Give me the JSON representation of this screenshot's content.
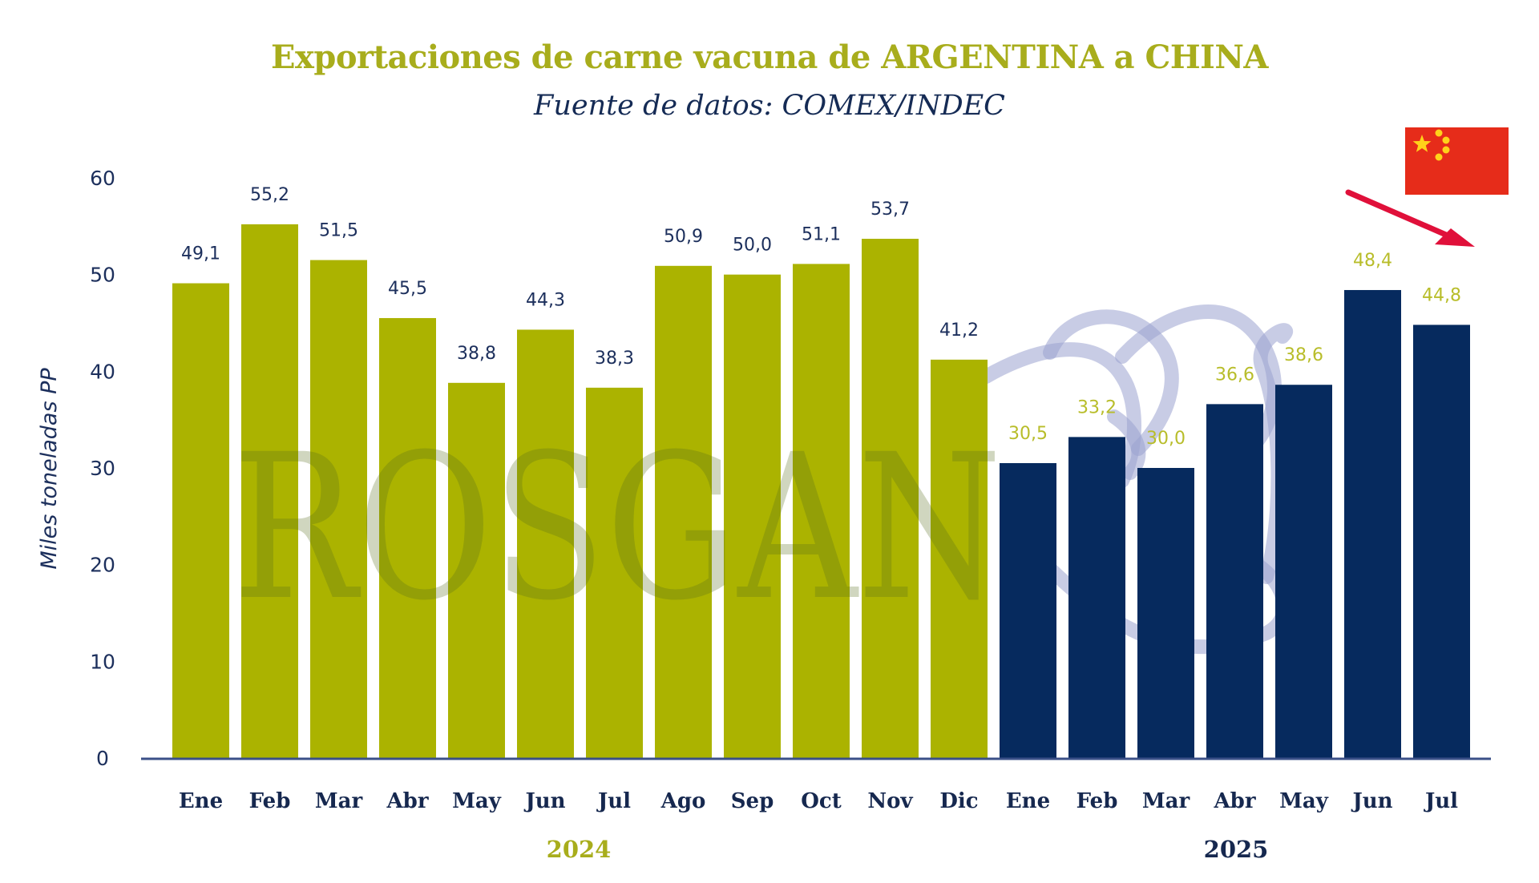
{
  "header": {
    "title": "Exportaciones de carne vacuna de ARGENTINA a CHINA",
    "subtitle": "Fuente de datos: COMEX/INDEC"
  },
  "watermark": "ROSGAN",
  "colors": {
    "bar_2024": "#abb300",
    "bar_2025": "#062a5e",
    "label_2024": "#1c2f5c",
    "label_2025": "#b8bd2a",
    "axis": "#3b5088",
    "year_2024": "#a8ad1c",
    "year_2025": "#16284f",
    "flag_red": "#e62c1a",
    "flag_star": "#ffd21a",
    "arrow": "#e0103a"
  },
  "annotation": {
    "flag": "china-flag",
    "arrow": "down-trend-arrow"
  },
  "chart_data": {
    "type": "bar",
    "title": "Exportaciones de carne vacuna de ARGENTINA a CHINA",
    "subtitle": "Fuente de datos: COMEX/INDEC",
    "xlabel": "",
    "ylabel": "Miles toneladas PP",
    "ylim": [
      0,
      60
    ],
    "yticks": [
      0,
      10,
      20,
      30,
      40,
      50,
      60
    ],
    "grid": false,
    "legend": "none",
    "groups": [
      {
        "name": "2024",
        "start": 0,
        "end": 11
      },
      {
        "name": "2025",
        "start": 12,
        "end": 18
      }
    ],
    "categories": [
      "Ene",
      "Feb",
      "Mar",
      "Abr",
      "May",
      "Jun",
      "Jul",
      "Ago",
      "Sep",
      "Oct",
      "Nov",
      "Dic",
      "Ene",
      "Feb",
      "Mar",
      "Abr",
      "May",
      "Jun",
      "Jul"
    ],
    "series": [
      {
        "name": "2024",
        "values": [
          49.1,
          55.2,
          51.5,
          45.5,
          38.8,
          44.3,
          38.3,
          50.9,
          50.0,
          51.1,
          53.7,
          41.2,
          null,
          null,
          null,
          null,
          null,
          null,
          null
        ]
      },
      {
        "name": "2025",
        "values": [
          null,
          null,
          null,
          null,
          null,
          null,
          null,
          null,
          null,
          null,
          null,
          null,
          30.5,
          33.2,
          30.0,
          36.6,
          38.6,
          48.4,
          44.8
        ]
      }
    ],
    "data_labels": [
      "49,1",
      "55,2",
      "51,5",
      "45,5",
      "38,8",
      "44,3",
      "38,3",
      "50,9",
      "50,0",
      "51,1",
      "53,7",
      "41,2",
      "30,5",
      "33,2",
      "30,0",
      "36,6",
      "38,6",
      "48,4",
      "44,8"
    ]
  }
}
